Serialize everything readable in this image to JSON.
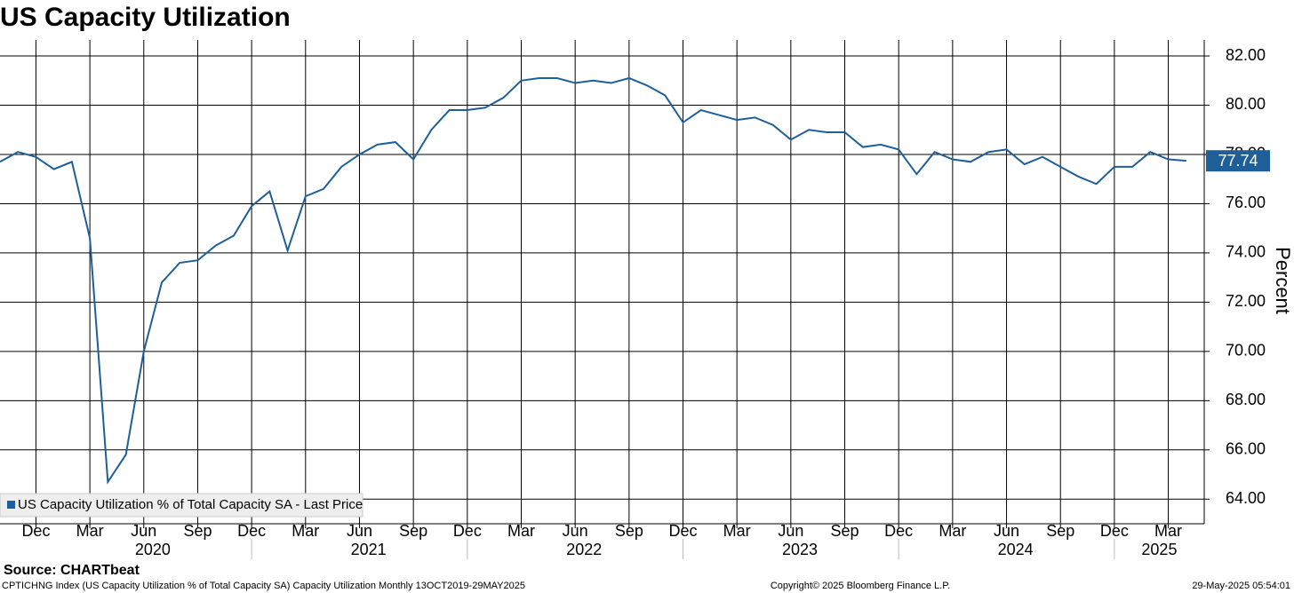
{
  "chart_data": {
    "type": "line",
    "title": "US Capacity Utilization",
    "y_label": "Percent",
    "source": "Source: CHARTbeat",
    "footer": [
      "CPTICHNG Index (US Capacity Utilization % of Total Capacity SA) Capacity Utilization  Monthly 13OCT2019-29MAY2025",
      "Copyright© 2025 Bloomberg Finance L.P.",
      "29-May-2025 05:54:01"
    ],
    "legend": "lower left",
    "grid": true,
    "xlim": [
      "2019-10",
      "2025-05"
    ],
    "ylim": [
      63,
      82.65
    ],
    "yticks": [
      {
        "value": 64,
        "label": "64.00"
      },
      {
        "value": 66,
        "label": "66.00"
      },
      {
        "value": 68,
        "label": "68.00"
      },
      {
        "value": 70,
        "label": "70.00"
      },
      {
        "value": 72,
        "label": "72.00"
      },
      {
        "value": 74,
        "label": "74.00"
      },
      {
        "value": 76,
        "label": "76.00"
      },
      {
        "value": 78,
        "label": "78.00"
      },
      {
        "value": 80,
        "label": "80.00"
      },
      {
        "value": 82,
        "label": "82.00"
      }
    ],
    "xticks": [
      {
        "value": "2019-12",
        "label": "Dec"
      },
      {
        "value": "2020-03",
        "label": "Mar"
      },
      {
        "value": "2020-06",
        "label": "Jun"
      },
      {
        "value": "2020-09",
        "label": "Sep"
      },
      {
        "value": "2020-12",
        "label": "Dec"
      },
      {
        "value": "2021-03",
        "label": "Mar"
      },
      {
        "value": "2021-06",
        "label": "Jun"
      },
      {
        "value": "2021-09",
        "label": "Sep"
      },
      {
        "value": "2021-12",
        "label": "Dec"
      },
      {
        "value": "2022-03",
        "label": "Mar"
      },
      {
        "value": "2022-06",
        "label": "Jun"
      },
      {
        "value": "2022-09",
        "label": "Sep"
      },
      {
        "value": "2022-12",
        "label": "Dec"
      },
      {
        "value": "2023-03",
        "label": "Mar"
      },
      {
        "value": "2023-06",
        "label": "Jun"
      },
      {
        "value": "2023-09",
        "label": "Sep"
      },
      {
        "value": "2023-12",
        "label": "Dec"
      },
      {
        "value": "2024-03",
        "label": "Mar"
      },
      {
        "value": "2024-06",
        "label": "Jun"
      },
      {
        "value": "2024-09",
        "label": "Sep"
      },
      {
        "value": "2024-12",
        "label": "Dec"
      },
      {
        "value": "2025-03",
        "label": "Mar"
      }
    ],
    "year_labels": [
      "2020",
      "2021",
      "2022",
      "2023",
      "2024",
      "2025"
    ],
    "series": [
      {
        "name": "US Capacity Utilization % of Total Capacity SA - Last Price",
        "color": "#1f5f99",
        "x": [
          "2019-10",
          "2019-11",
          "2019-12",
          "2020-01",
          "2020-02",
          "2020-03",
          "2020-04",
          "2020-05",
          "2020-06",
          "2020-07",
          "2020-08",
          "2020-09",
          "2020-10",
          "2020-11",
          "2020-12",
          "2021-01",
          "2021-02",
          "2021-03",
          "2021-04",
          "2021-05",
          "2021-06",
          "2021-07",
          "2021-08",
          "2021-09",
          "2021-10",
          "2021-11",
          "2021-12",
          "2022-01",
          "2022-02",
          "2022-03",
          "2022-04",
          "2022-05",
          "2022-06",
          "2022-07",
          "2022-08",
          "2022-09",
          "2022-10",
          "2022-11",
          "2022-12",
          "2023-01",
          "2023-02",
          "2023-03",
          "2023-04",
          "2023-05",
          "2023-06",
          "2023-07",
          "2023-08",
          "2023-09",
          "2023-10",
          "2023-11",
          "2023-12",
          "2024-01",
          "2024-02",
          "2024-03",
          "2024-04",
          "2024-05",
          "2024-06",
          "2024-07",
          "2024-08",
          "2024-09",
          "2024-10",
          "2024-11",
          "2024-12",
          "2025-01",
          "2025-02",
          "2025-03",
          "2025-04"
        ],
        "values": [
          77.7,
          78.1,
          77.9,
          77.4,
          77.7,
          74.6,
          64.7,
          65.8,
          70.0,
          72.8,
          73.6,
          73.7,
          74.3,
          74.7,
          75.9,
          76.5,
          74.1,
          76.3,
          76.6,
          77.5,
          78.0,
          78.4,
          78.5,
          77.8,
          79.0,
          79.8,
          79.8,
          79.9,
          80.3,
          81.0,
          81.1,
          81.1,
          80.9,
          81.0,
          80.9,
          81.1,
          80.8,
          80.4,
          79.3,
          79.8,
          79.6,
          79.4,
          79.5,
          79.2,
          78.6,
          79.0,
          78.9,
          78.9,
          78.3,
          78.4,
          78.2,
          77.2,
          78.1,
          77.8,
          77.7,
          78.1,
          78.2,
          77.6,
          77.9,
          77.5,
          77.1,
          76.8,
          77.5,
          77.5,
          78.1,
          77.8,
          77.74
        ]
      }
    ]
  }
}
